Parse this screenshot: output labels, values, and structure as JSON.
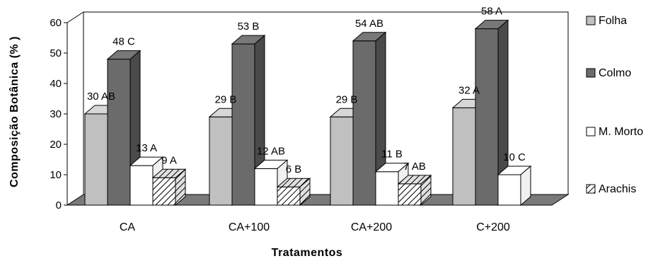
{
  "chart_data": {
    "type": "bar",
    "title": "",
    "xlabel": "Tratamentos",
    "ylabel": "Composição Botânica (% )",
    "ylim": [
      0,
      60
    ],
    "yticks": [
      "0",
      "10",
      "20",
      "30",
      "40",
      "50",
      "60"
    ],
    "categories": [
      "CA",
      "CA+100",
      "CA+200",
      "C+200"
    ],
    "legend_position": "right",
    "grid": false,
    "series": [
      {
        "name": "Folha",
        "color": "#c0c0c0",
        "values": [
          30,
          29,
          29,
          32
        ],
        "labels": [
          "30 AB",
          "29 B",
          "29 B",
          "32 A"
        ]
      },
      {
        "name": "Colmo",
        "color": "#6b6b6b",
        "values": [
          48,
          53,
          54,
          58
        ],
        "labels": [
          "48 C",
          "53 B",
          "54 AB",
          "58 A"
        ]
      },
      {
        "name": "M. Morto",
        "color": "#ffffff",
        "values": [
          13,
          12,
          11,
          10
        ],
        "labels": [
          "13 A",
          "12 AB",
          "11 B",
          "10 C"
        ]
      },
      {
        "name": "Arachis",
        "color": "hatched",
        "values": [
          9,
          6,
          7,
          null
        ],
        "labels": [
          "9 A",
          "6 B",
          "7 AB",
          ""
        ]
      }
    ]
  }
}
